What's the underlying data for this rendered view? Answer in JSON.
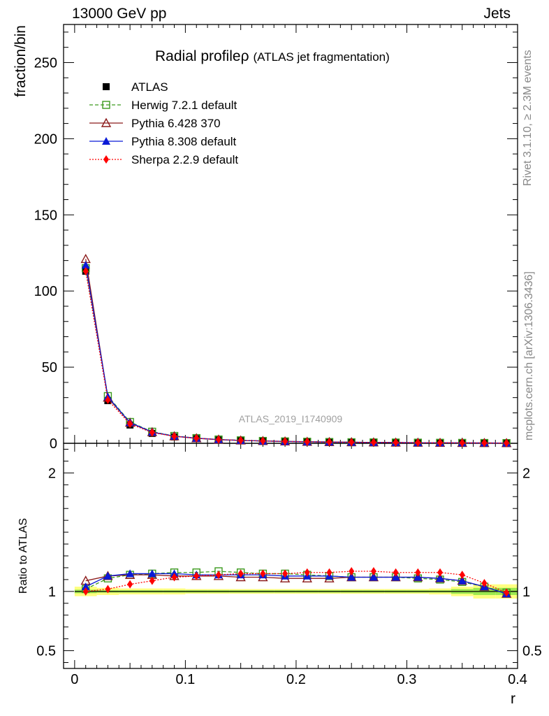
{
  "header": {
    "energy_label": "13000 GeV pp",
    "process_label": "Jets"
  },
  "side_labels": {
    "rivet": "Rivet 3.1.10, ≥ 2.3M events",
    "mcplots": "mcplots.cern.ch [arXiv:1306.3436]"
  },
  "chart_data": [
    {
      "type": "line",
      "title": "Radial profileρ",
      "subtitle": "(ATLAS jet fragmentation)",
      "watermark": "ATLAS_2019_I1740909",
      "xlabel": "",
      "ylabel": "fraction/bin",
      "xlim": [
        -0.01,
        0.4
      ],
      "ylim": [
        0,
        275
      ],
      "yticks": [
        0,
        50,
        100,
        150,
        200,
        250
      ],
      "legend_position": "top-left",
      "x": [
        0.01,
        0.03,
        0.05,
        0.07,
        0.09,
        0.11,
        0.13,
        0.15,
        0.17,
        0.19,
        0.21,
        0.23,
        0.25,
        0.27,
        0.29,
        0.31,
        0.33,
        0.35,
        0.37,
        0.39
      ],
      "series": [
        {
          "name": "ATLAS",
          "color": "#000000",
          "marker": "square-filled",
          "line": "none",
          "values": [
            113,
            28,
            12,
            6.5,
            4.2,
            3.0,
            2.2,
            1.7,
            1.35,
            1.1,
            0.9,
            0.75,
            0.62,
            0.52,
            0.44,
            0.37,
            0.3,
            0.25,
            0.2,
            0.16
          ]
        },
        {
          "name": "Herwig 7.2.1 default",
          "color": "#3c9a1e",
          "marker": "square-open",
          "line": "dashed",
          "values": [
            115,
            31,
            14,
            7.6,
            4.8,
            3.4,
            2.5,
            1.95,
            1.55,
            1.26,
            1.02,
            0.85,
            0.7,
            0.59,
            0.5,
            0.42,
            0.34,
            0.28,
            0.21,
            0.16
          ]
        },
        {
          "name": "Pythia 6.428 370",
          "color": "#8b1a1a",
          "marker": "triangle-open",
          "line": "solid",
          "values": [
            121,
            30,
            13.5,
            7.3,
            4.6,
            3.3,
            2.42,
            1.88,
            1.5,
            1.22,
            1.0,
            0.84,
            0.7,
            0.58,
            0.49,
            0.41,
            0.33,
            0.27,
            0.21,
            0.16
          ]
        },
        {
          "name": "Pythia 8.308 default",
          "color": "#0a1ad6",
          "marker": "triangle-filled",
          "line": "solid",
          "values": [
            117,
            30.5,
            13.6,
            7.4,
            4.7,
            3.35,
            2.45,
            1.9,
            1.52,
            1.23,
            1.0,
            0.84,
            0.7,
            0.58,
            0.49,
            0.41,
            0.34,
            0.27,
            0.21,
            0.16
          ]
        },
        {
          "name": "Sherpa 2.2.9 default",
          "color": "#ff0000",
          "marker": "diamond-filled",
          "line": "dotted",
          "values": [
            113,
            28.5,
            12.8,
            7.1,
            4.6,
            3.3,
            2.45,
            1.9,
            1.52,
            1.25,
            1.02,
            0.85,
            0.71,
            0.6,
            0.5,
            0.42,
            0.34,
            0.28,
            0.21,
            0.16
          ]
        }
      ]
    },
    {
      "type": "line",
      "title": "",
      "xlabel": "r",
      "ylabel": "Ratio to ATLAS",
      "xlim": [
        -0.01,
        0.4
      ],
      "ylim": [
        0.35,
        2.25
      ],
      "xticks": [
        0,
        0.1,
        0.2,
        0.3,
        0.4
      ],
      "xtick_labels": [
        "0",
        "0.1",
        "0.2",
        "0.3",
        "0.4"
      ],
      "yticks": [
        0.5,
        1,
        2
      ],
      "ytick_labels": [
        "0.5",
        "1",
        "2"
      ],
      "reference": 1,
      "bands": {
        "inner_color": "#9be84f",
        "outer_color": "#ffff80",
        "inner_half_width": [
          0.015,
          0.01,
          0.01,
          0.01,
          0.01,
          0.01,
          0.01,
          0.01,
          0.01,
          0.01,
          0.01,
          0.01,
          0.01,
          0.01,
          0.01,
          0.01,
          0.01,
          0.02,
          0.03,
          0.03
        ],
        "outer_half_width": [
          0.04,
          0.03,
          0.025,
          0.025,
          0.025,
          0.02,
          0.02,
          0.02,
          0.02,
          0.02,
          0.02,
          0.02,
          0.02,
          0.02,
          0.02,
          0.02,
          0.025,
          0.04,
          0.06,
          0.06
        ]
      },
      "x": [
        0.01,
        0.03,
        0.05,
        0.07,
        0.09,
        0.11,
        0.13,
        0.15,
        0.17,
        0.19,
        0.21,
        0.23,
        0.25,
        0.27,
        0.29,
        0.31,
        0.33,
        0.35,
        0.37,
        0.39
      ],
      "series": [
        {
          "name": "Herwig 7.2.1 default",
          "color": "#3c9a1e",
          "marker": "square-open",
          "line": "dashed",
          "values": [
            1.02,
            1.11,
            1.14,
            1.15,
            1.16,
            1.16,
            1.17,
            1.16,
            1.15,
            1.15,
            1.14,
            1.13,
            1.12,
            1.12,
            1.12,
            1.11,
            1.1,
            1.08,
            1.04,
            0.99
          ]
        },
        {
          "name": "Pythia 6.428 370",
          "color": "#8b1a1a",
          "marker": "triangle-open",
          "line": "solid",
          "values": [
            1.09,
            1.13,
            1.14,
            1.14,
            1.13,
            1.13,
            1.13,
            1.12,
            1.12,
            1.11,
            1.11,
            1.11,
            1.12,
            1.12,
            1.12,
            1.12,
            1.11,
            1.09,
            1.04,
            0.98
          ]
        },
        {
          "name": "Pythia 8.308 default",
          "color": "#0a1ad6",
          "marker": "triangle-filled",
          "line": "solid",
          "values": [
            1.04,
            1.13,
            1.15,
            1.15,
            1.15,
            1.14,
            1.14,
            1.14,
            1.14,
            1.13,
            1.13,
            1.13,
            1.12,
            1.12,
            1.12,
            1.12,
            1.11,
            1.09,
            1.04,
            0.98
          ]
        },
        {
          "name": "Sherpa 2.2.9 default",
          "color": "#ff0000",
          "marker": "diamond-filled",
          "line": "dotted",
          "values": [
            1.0,
            1.02,
            1.06,
            1.09,
            1.12,
            1.13,
            1.14,
            1.15,
            1.15,
            1.15,
            1.16,
            1.16,
            1.17,
            1.17,
            1.16,
            1.16,
            1.16,
            1.14,
            1.07,
            0.99
          ]
        }
      ]
    }
  ]
}
